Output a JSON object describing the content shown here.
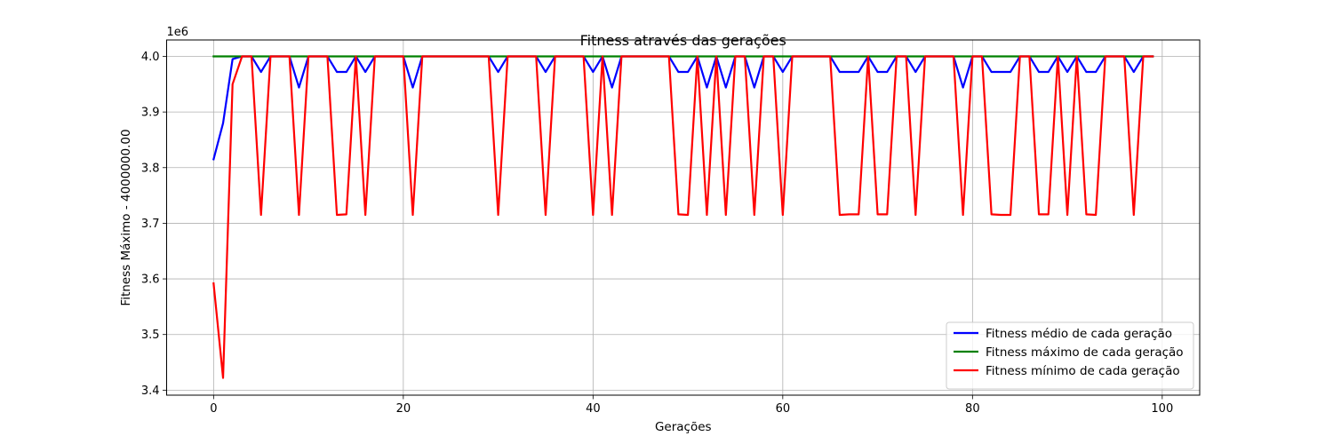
{
  "chart_data": {
    "type": "line",
    "title": "Fitness através das gerações",
    "xlabel": "Gerações",
    "ylabel": "Fitness Máximo - 4000000.00",
    "y_offset_text": "1e6",
    "xlim": [
      -4.95,
      103.95
    ],
    "ylim": [
      3.391,
      4.0295
    ],
    "xticks": [
      0,
      20,
      40,
      60,
      80,
      100
    ],
    "xtick_labels": [
      "0",
      "20",
      "40",
      "60",
      "80",
      "100"
    ],
    "yticks": [
      3.4,
      3.5,
      3.6,
      3.7,
      3.8,
      3.9,
      4.0
    ],
    "ytick_labels": [
      "3.4",
      "3.5",
      "3.6",
      "3.7",
      "3.8",
      "3.9",
      "4.0"
    ],
    "grid": true,
    "legend_position": "lower-right",
    "series": [
      {
        "name": "Fitness médio de cada geração",
        "color": "#0000ff",
        "x": [
          0,
          1,
          2,
          3,
          4,
          5,
          6,
          7,
          8,
          9,
          10,
          11,
          12,
          13,
          14,
          15,
          16,
          17,
          18,
          19,
          20,
          21,
          22,
          23,
          24,
          25,
          26,
          27,
          28,
          29,
          30,
          31,
          32,
          33,
          34,
          35,
          36,
          37,
          38,
          39,
          40,
          41,
          42,
          43,
          44,
          45,
          46,
          47,
          48,
          49,
          50,
          51,
          52,
          53,
          54,
          55,
          56,
          57,
          58,
          59,
          60,
          61,
          62,
          63,
          64,
          65,
          66,
          67,
          68,
          69,
          70,
          71,
          72,
          73,
          74,
          75,
          76,
          77,
          78,
          79,
          80,
          81,
          82,
          83,
          84,
          85,
          86,
          87,
          88,
          89,
          90,
          91,
          92,
          93,
          94,
          95,
          96,
          97,
          98,
          99
        ],
        "y": [
          3.815,
          3.88,
          3.995,
          4.0,
          4.0,
          3.972,
          4.0,
          4.0,
          4.0,
          3.944,
          4.0,
          4.0,
          4.0,
          3.972,
          3.972,
          4.0,
          3.972,
          4.0,
          4.0,
          4.0,
          4.0,
          3.944,
          4.0,
          4.0,
          4.0,
          4.0,
          4.0,
          4.0,
          4.0,
          4.0,
          3.972,
          4.0,
          4.0,
          4.0,
          4.0,
          3.972,
          4.0,
          4.0,
          4.0,
          4.0,
          3.972,
          4.0,
          3.944,
          4.0,
          4.0,
          4.0,
          4.0,
          4.0,
          4.0,
          3.972,
          3.972,
          4.0,
          3.944,
          4.0,
          3.944,
          4.0,
          4.0,
          3.944,
          4.0,
          4.0,
          3.972,
          4.0,
          4.0,
          4.0,
          4.0,
          4.0,
          3.972,
          3.972,
          3.972,
          4.0,
          3.972,
          3.972,
          4.0,
          4.0,
          3.972,
          4.0,
          4.0,
          4.0,
          4.0,
          3.944,
          4.0,
          4.0,
          3.972,
          3.972,
          3.972,
          4.0,
          4.0,
          3.972,
          3.972,
          4.0,
          3.972,
          4.0,
          3.972,
          3.972,
          4.0,
          4.0,
          4.0,
          3.972,
          4.0,
          4.0
        ]
      },
      {
        "name": "Fitness máximo de cada geração",
        "color": "#008000",
        "x": [
          0,
          99
        ],
        "y": [
          4.0,
          4.0
        ]
      },
      {
        "name": "Fitness mínimo de cada geração",
        "color": "#ff0000",
        "x": [
          0,
          1,
          2,
          3,
          4,
          5,
          6,
          7,
          8,
          9,
          10,
          11,
          12,
          13,
          14,
          15,
          16,
          17,
          18,
          19,
          20,
          21,
          22,
          23,
          24,
          25,
          26,
          27,
          28,
          29,
          30,
          31,
          32,
          33,
          34,
          35,
          36,
          37,
          38,
          39,
          40,
          41,
          42,
          43,
          44,
          45,
          46,
          47,
          48,
          49,
          50,
          51,
          52,
          53,
          54,
          55,
          56,
          57,
          58,
          59,
          60,
          61,
          62,
          63,
          64,
          65,
          66,
          67,
          68,
          69,
          70,
          71,
          72,
          73,
          74,
          75,
          76,
          77,
          78,
          79,
          80,
          81,
          82,
          83,
          84,
          85,
          86,
          87,
          88,
          89,
          90,
          91,
          92,
          93,
          94,
          95,
          96,
          97,
          98,
          99
        ],
        "y": [
          3.592,
          3.422,
          3.95,
          4.0,
          4.0,
          3.715,
          4.0,
          4.0,
          4.0,
          3.715,
          4.0,
          4.0,
          4.0,
          3.715,
          3.716,
          4.0,
          3.715,
          4.0,
          4.0,
          4.0,
          4.0,
          3.715,
          4.0,
          4.0,
          4.0,
          4.0,
          4.0,
          4.0,
          4.0,
          4.0,
          3.715,
          4.0,
          4.0,
          4.0,
          4.0,
          3.715,
          4.0,
          4.0,
          4.0,
          4.0,
          3.715,
          4.0,
          3.715,
          4.0,
          4.0,
          4.0,
          4.0,
          4.0,
          4.0,
          3.716,
          3.715,
          4.0,
          3.715,
          4.0,
          3.715,
          4.0,
          4.0,
          3.715,
          4.0,
          4.0,
          3.715,
          4.0,
          4.0,
          4.0,
          4.0,
          4.0,
          3.715,
          3.716,
          3.716,
          4.0,
          3.716,
          3.716,
          4.0,
          4.0,
          3.715,
          4.0,
          4.0,
          4.0,
          4.0,
          3.715,
          4.0,
          4.0,
          3.716,
          3.715,
          3.715,
          4.0,
          4.0,
          3.716,
          3.716,
          4.0,
          3.715,
          4.0,
          3.716,
          3.715,
          4.0,
          4.0,
          4.0,
          3.715,
          4.0,
          4.0
        ]
      }
    ]
  }
}
